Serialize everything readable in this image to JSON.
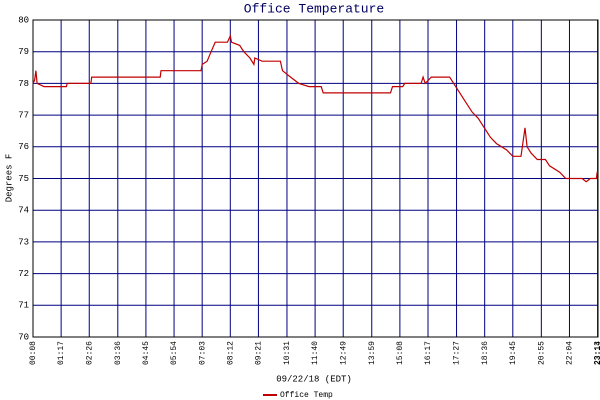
{
  "chart_data": {
    "type": "line",
    "title": "Office Temperature",
    "x_label": "09/22/18 (EDT)",
    "y_label": "Degrees F",
    "x": [
      "00:08",
      "00:12",
      "00:15",
      "00:18",
      "00:35",
      "01:30",
      "01:32",
      "02:30",
      "02:32",
      "05:20",
      "05:22",
      "07:00",
      "07:03",
      "07:15",
      "07:25",
      "07:35",
      "08:05",
      "08:12",
      "08:15",
      "08:35",
      "08:45",
      "09:00",
      "09:10",
      "09:12",
      "09:30",
      "10:15",
      "10:20",
      "10:40",
      "11:00",
      "11:25",
      "11:55",
      "12:00",
      "14:45",
      "14:50",
      "15:15",
      "15:20",
      "16:00",
      "16:05",
      "16:10",
      "16:25",
      "17:10",
      "17:20",
      "17:35",
      "17:50",
      "18:05",
      "18:20",
      "18:35",
      "18:50",
      "19:05",
      "19:30",
      "19:45",
      "20:05",
      "20:15",
      "20:20",
      "20:30",
      "20:45",
      "21:05",
      "21:15",
      "21:40",
      "21:55",
      "22:35",
      "22:45",
      "22:55",
      "23:10",
      "23:12",
      "23:14"
    ],
    "series": [
      {
        "name": "Office Temp",
        "color": "#c00000",
        "values": [
          78.0,
          78.1,
          78.4,
          78.0,
          77.9,
          77.9,
          78.0,
          78.0,
          78.2,
          78.2,
          78.4,
          78.4,
          78.6,
          78.7,
          79.0,
          79.3,
          79.3,
          79.5,
          79.3,
          79.2,
          79.0,
          78.8,
          78.6,
          78.8,
          78.7,
          78.7,
          78.4,
          78.2,
          78.0,
          77.9,
          77.9,
          77.7,
          77.7,
          77.9,
          77.9,
          78.0,
          78.0,
          78.2,
          78.0,
          78.2,
          78.2,
          78.0,
          77.7,
          77.4,
          77.1,
          76.9,
          76.6,
          76.3,
          76.1,
          75.9,
          75.7,
          75.7,
          76.6,
          76.0,
          75.8,
          75.6,
          75.6,
          75.4,
          75.2,
          75.0,
          75.0,
          74.9,
          75.0,
          75.0,
          75.2,
          75.2
        ]
      }
    ],
    "xlim": [
      "00:08",
      "23:14"
    ],
    "xticks": [
      "00:08",
      "01:17",
      "02:26",
      "03:36",
      "04:45",
      "05:54",
      "07:03",
      "08:12",
      "09:21",
      "10:31",
      "11:40",
      "12:49",
      "13:59",
      "15:08",
      "16:17",
      "17:27",
      "18:36",
      "19:45",
      "20:55",
      "22:04",
      "23:13",
      "23:14"
    ],
    "ylim": [
      70,
      80
    ],
    "yticks": [
      70,
      71,
      72,
      73,
      74,
      75,
      76,
      77,
      78,
      79,
      80
    ],
    "grid": true,
    "legend": "bottom"
  }
}
